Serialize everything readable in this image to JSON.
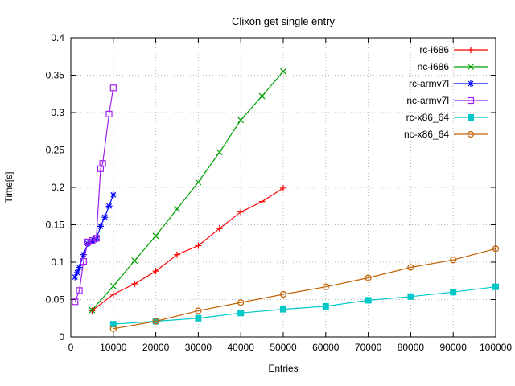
{
  "chart_data": {
    "type": "line",
    "title": "Clixon get single entry",
    "xlabel": "Entries",
    "ylabel": "Time[s]",
    "xlim": [
      0,
      100000
    ],
    "ylim": [
      0,
      0.4
    ],
    "grid": true,
    "legend_position": "top-right-inside",
    "xticks": {
      "values": [
        0,
        10000,
        20000,
        30000,
        40000,
        50000,
        60000,
        70000,
        80000,
        90000,
        100000
      ],
      "labels": [
        "0",
        "10000",
        "20000",
        "30000",
        "40000",
        "50000",
        "60000",
        "70000",
        "80000",
        "90000",
        "100000"
      ]
    },
    "yticks": {
      "values": [
        0,
        0.05,
        0.1,
        0.15,
        0.2,
        0.25,
        0.3,
        0.35,
        0.4
      ],
      "labels": [
        "0",
        "0.05",
        "0.1",
        "0.15",
        "0.2",
        "0.25",
        "0.3",
        "0.35",
        "0.4"
      ]
    },
    "series": [
      {
        "name": "rc-i686",
        "color": "#ff0000",
        "marker": "plus",
        "points": [
          [
            5000,
            0.035
          ],
          [
            10000,
            0.057
          ],
          [
            15000,
            0.071
          ],
          [
            20000,
            0.088
          ],
          [
            25000,
            0.11
          ],
          [
            30000,
            0.122
          ],
          [
            35000,
            0.145
          ],
          [
            40000,
            0.167
          ],
          [
            45000,
            0.181
          ],
          [
            50000,
            0.199
          ]
        ]
      },
      {
        "name": "nc-i686",
        "color": "#00a000",
        "marker": "cross",
        "points": [
          [
            5000,
            0.036
          ],
          [
            10000,
            0.068
          ],
          [
            15000,
            0.102
          ],
          [
            20000,
            0.135
          ],
          [
            25000,
            0.171
          ],
          [
            30000,
            0.207
          ],
          [
            35000,
            0.247
          ],
          [
            40000,
            0.29
          ],
          [
            45000,
            0.322
          ],
          [
            50000,
            0.355
          ]
        ]
      },
      {
        "name": "rc-armv7l",
        "color": "#0000ff",
        "marker": "asterisk",
        "points": [
          [
            1000,
            0.08
          ],
          [
            1500,
            0.086
          ],
          [
            2000,
            0.093
          ],
          [
            3000,
            0.11
          ],
          [
            4000,
            0.125
          ],
          [
            5000,
            0.128
          ],
          [
            5500,
            0.13
          ],
          [
            6000,
            0.131
          ],
          [
            7000,
            0.148
          ],
          [
            8000,
            0.16
          ],
          [
            9000,
            0.175
          ],
          [
            10000,
            0.19
          ]
        ]
      },
      {
        "name": "nc-armv7l",
        "color": "#a020f0",
        "marker": "square-open",
        "points": [
          [
            1000,
            0.047
          ],
          [
            2000,
            0.062
          ],
          [
            3000,
            0.101
          ],
          [
            4000,
            0.127
          ],
          [
            5000,
            0.129
          ],
          [
            6000,
            0.132
          ],
          [
            7000,
            0.225
          ],
          [
            7500,
            0.232
          ],
          [
            9000,
            0.298
          ],
          [
            10000,
            0.333
          ]
        ]
      },
      {
        "name": "rc-x86_64",
        "color": "#00c8c8",
        "marker": "square-filled",
        "points": [
          [
            10000,
            0.017
          ],
          [
            20000,
            0.021
          ],
          [
            30000,
            0.025
          ],
          [
            40000,
            0.032
          ],
          [
            50000,
            0.037
          ],
          [
            60000,
            0.041
          ],
          [
            70000,
            0.049
          ],
          [
            80000,
            0.054
          ],
          [
            90000,
            0.06
          ],
          [
            100000,
            0.067
          ]
        ]
      },
      {
        "name": "nc-x86_64",
        "color": "#c06000",
        "marker": "circle-open",
        "points": [
          [
            10000,
            0.011
          ],
          [
            20000,
            0.021
          ],
          [
            30000,
            0.035
          ],
          [
            40000,
            0.046
          ],
          [
            50000,
            0.057
          ],
          [
            60000,
            0.067
          ],
          [
            70000,
            0.079
          ],
          [
            80000,
            0.093
          ],
          [
            90000,
            0.103
          ],
          [
            100000,
            0.118
          ]
        ]
      }
    ]
  }
}
